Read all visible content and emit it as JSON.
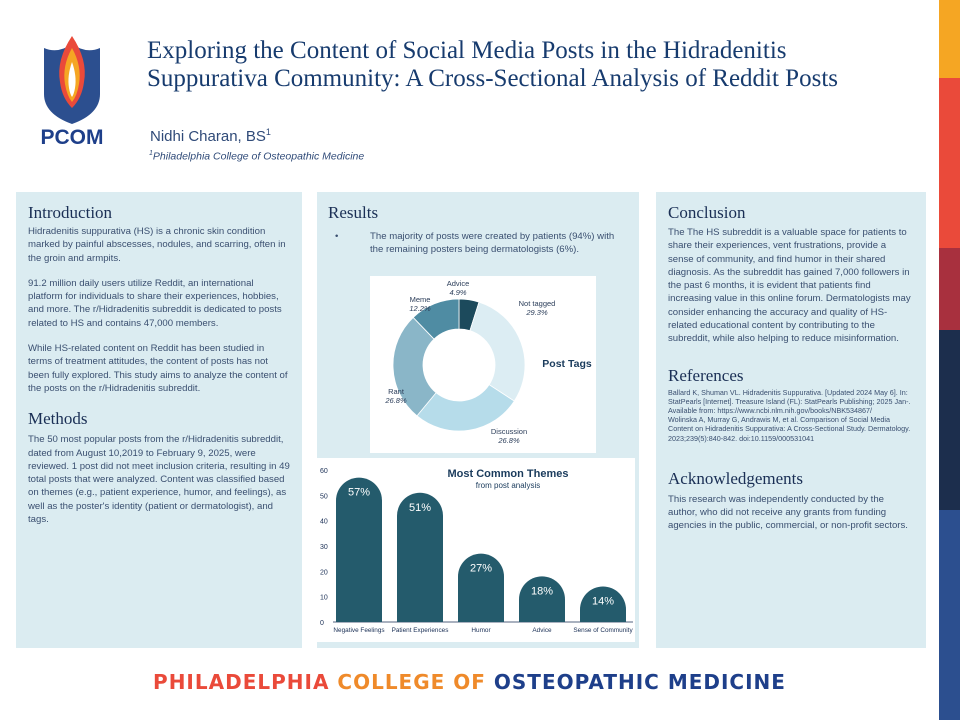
{
  "header": {
    "logo_text": "PCOM",
    "title": "Exploring the Content of Social Media Posts in the Hidradenitis Suppurativa Community: A Cross-Sectional Analysis of Reddit Posts",
    "author": "Nidhi Charan, BS",
    "author_sup": "1",
    "affiliation_sup": "1",
    "affiliation": "Philadelphia College of Osteopathic Medicine"
  },
  "introduction": {
    "heading": "Introduction",
    "paragraphs": [
      "Hidradenitis suppurativa (HS) is a chronic skin condition marked by painful abscesses, nodules, and scarring, often in the groin and armpits.",
      "91.2 million daily users utilize Reddit, an international platform for individuals to share their experiences, hobbies, and more. The r/Hidradenitis subreddit is dedicated to posts related to HS and contains 47,000 members.",
      "While HS-related content on Reddit has been studied in terms of treatment attitudes, the content of posts has not been fully explored. This study aims to analyze the content of the posts on the r/Hidradenitis subreddit."
    ]
  },
  "methods": {
    "heading": "Methods",
    "text": "The 50 most popular posts from the r/Hidradenitis subreddit, dated from August 10,2019 to February 9, 2025, were reviewed. 1 post did not meet inclusion criteria, resulting in 49 total posts that were analyzed. Content was classified based on themes (e.g., patient experience, humor, and feelings), as well as the poster's identity (patient or dermatologist), and tags."
  },
  "results": {
    "heading": "Results",
    "bullet": "The majority of posts were created by patients (94%) with the remaining posters being dermatologists (6%)."
  },
  "conclusion": {
    "heading": "Conclusion",
    "text": "The The HS subreddit is a valuable space for patients to share their experiences, vent frustrations, provide a sense of community, and find humor in their shared diagnosis. As the subreddit has gained 7,000 followers in the past 6 months, it is evident that patients find increasing value in this online forum. Dermatologists may consider enhancing the accuracy and quality of HS-related educational content by contributing to the subreddit, while also helping to reduce misinformation."
  },
  "references": {
    "heading": "References",
    "items": [
      "Ballard K, Shuman VL. Hidradenitis Suppurativa. [Updated 2024 May 6]. In: StatPearls [Internet]. Treasure Island (FL): StatPearls Publishing; 2025 Jan-. Available from: https://www.ncbi.nlm.nih.gov/books/NBK534867/",
      "Wolinska A, Murray G, Andrawis M, et al. Comparison of Social Media Content on Hidradenitis Suppurativa: A Cross-Sectional Study. Dermatology. 2023;239(5):840-842. doi:10.1159/000531041"
    ]
  },
  "acknowledgements": {
    "heading": "Acknowledgements",
    "text": "This research was independently conducted by the author, who did not receive any grants from funding agencies in the public, commercial, or non-profit sectors."
  },
  "footer": {
    "part1": "PHILADELPHIA ",
    "part2": "COLLEGE OF ",
    "part3": "OSTEOPATHIC MEDICINE",
    "color1": "#ea4a3a",
    "color2": "#ef8a2a",
    "color3": "#1e3f8a"
  },
  "stripe_colors": [
    "#f5a623",
    "#ea4a3a",
    "#a8303e",
    "#1c2e4d",
    "#2c4f8f"
  ],
  "chart_data": [
    {
      "type": "pie",
      "title": "Post Tags",
      "labels": [
        "Advice",
        "Not tagged",
        "Discussion",
        "Rant",
        "Meme"
      ],
      "display": [
        "4.9%",
        "29.3%",
        "26.8%",
        "26.8%",
        "12.2%"
      ],
      "values": [
        4.9,
        29.3,
        26.8,
        26.8,
        12.2
      ],
      "colors": [
        "#1c4a5c",
        "#dcedf3",
        "#b6dcea",
        "#8ab6c8",
        "#4f8ca3"
      ]
    },
    {
      "type": "bar",
      "title": "Most Common Themes",
      "subtitle": "from post analysis",
      "categories": [
        "Negative Feelings",
        "Patient Experiences",
        "Humor",
        "Advice",
        "Sense of Community"
      ],
      "values": [
        57,
        51,
        27,
        18,
        14
      ],
      "display": [
        "57%",
        "51%",
        "27%",
        "18%",
        "14%"
      ],
      "ylim": [
        0,
        60
      ],
      "yticks": [
        "0",
        "10",
        "20",
        "30",
        "40",
        "50",
        "60"
      ],
      "color": "#245b6c"
    }
  ]
}
